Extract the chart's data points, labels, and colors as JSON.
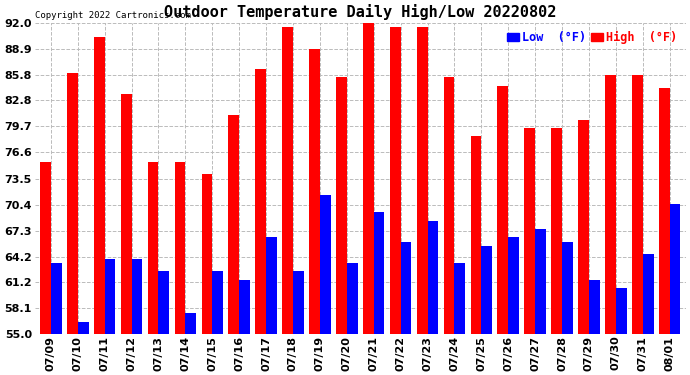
{
  "title": "Outdoor Temperature Daily High/Low 20220802",
  "copyright": "Copyright 2022 Cartronics.com",
  "dates": [
    "07/09",
    "07/10",
    "07/11",
    "07/12",
    "07/13",
    "07/14",
    "07/15",
    "07/16",
    "07/17",
    "07/18",
    "07/19",
    "07/20",
    "07/21",
    "07/22",
    "07/23",
    "07/24",
    "07/25",
    "07/26",
    "07/27",
    "07/28",
    "07/29",
    "07/30",
    "07/31",
    "08/01"
  ],
  "highs": [
    75.5,
    86.0,
    90.3,
    83.5,
    75.5,
    75.5,
    74.0,
    81.0,
    86.5,
    91.5,
    88.9,
    85.5,
    92.5,
    91.5,
    91.5,
    85.5,
    78.5,
    84.5,
    79.5,
    79.5,
    80.5,
    85.8,
    85.8,
    84.2
  ],
  "lows": [
    63.5,
    56.5,
    64.0,
    64.0,
    62.5,
    57.5,
    62.5,
    61.5,
    66.5,
    62.5,
    71.5,
    63.5,
    69.5,
    66.0,
    68.5,
    63.5,
    65.5,
    66.5,
    67.5,
    66.0,
    61.5,
    60.5,
    64.5,
    70.5
  ],
  "ylim": [
    55.0,
    92.0
  ],
  "yticks": [
    55.0,
    58.1,
    61.2,
    64.2,
    67.3,
    70.4,
    73.5,
    76.6,
    79.7,
    82.8,
    85.8,
    88.9,
    92.0
  ],
  "high_color": "#ff0000",
  "low_color": "#0000ff",
  "bg_color": "#ffffff",
  "grid_color": "#bbbbbb",
  "title_fontsize": 11,
  "tick_fontsize": 8,
  "bar_width": 0.4
}
